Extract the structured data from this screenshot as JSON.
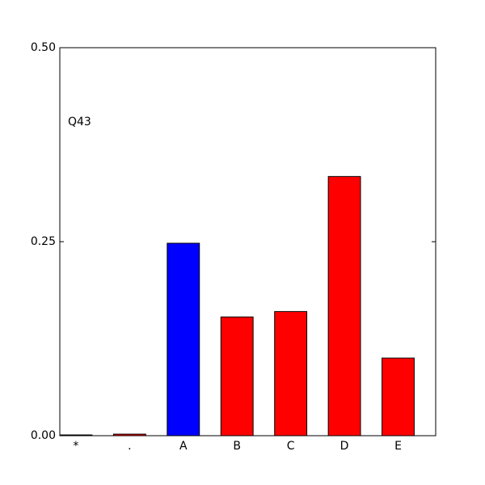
{
  "chart_data": {
    "type": "bar",
    "annotation": "Q43",
    "categories": [
      "*",
      ".",
      "A",
      "B",
      "C",
      "D",
      "E"
    ],
    "values": [
      0.001,
      0.002,
      0.248,
      0.153,
      0.16,
      0.334,
      0.1
    ],
    "colors": [
      "#ff0000",
      "#ff0000",
      "#0000ff",
      "#ff0000",
      "#ff0000",
      "#ff0000",
      "#ff0000"
    ],
    "ylim": [
      0,
      0.5
    ],
    "yticks": [
      {
        "value": 0,
        "label": "0.00"
      },
      {
        "value": 0.25,
        "label": "0.25"
      },
      {
        "value": 0.5,
        "label": "0.50"
      }
    ]
  }
}
